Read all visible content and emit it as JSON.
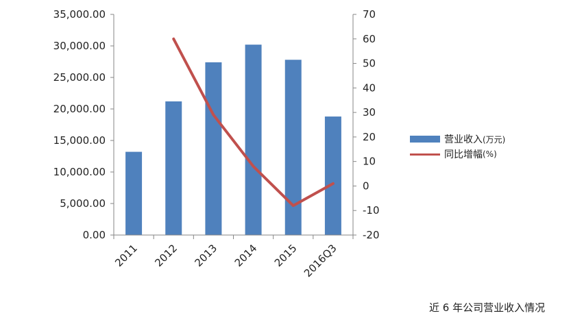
{
  "chart_data": {
    "type": "bar",
    "categories": [
      "2011",
      "2012",
      "2013",
      "2014",
      "2015",
      "2016Q3"
    ],
    "series": [
      {
        "name": "营业收入(万元)",
        "type": "bar",
        "axis": "left",
        "color": "#4f81bd",
        "values": [
          13200,
          21200,
          27400,
          30200,
          27800,
          18800
        ]
      },
      {
        "name": "同比增幅(%)",
        "type": "line",
        "axis": "right",
        "color": "#c0504d",
        "values": [
          null,
          60,
          29,
          8,
          -8,
          1
        ]
      }
    ],
    "y_left": {
      "lim": [
        0,
        35000
      ],
      "ticks": [
        "0.00",
        "5,000.00",
        "10,000.00",
        "15,000.00",
        "20,000.00",
        "25,000.00",
        "30,000.00",
        "35,000.00"
      ]
    },
    "y_right": {
      "lim": [
        -20,
        70
      ],
      "ticks": [
        "-20",
        "-10",
        "0",
        "10",
        "20",
        "30",
        "40",
        "50",
        "60",
        "70"
      ]
    },
    "legend_position": "right",
    "grid": false
  },
  "legend": {
    "bar_label": "营业收入",
    "bar_unit": "(万元)",
    "line_label": "同比增幅",
    "line_unit": "(%)"
  },
  "caption": "近 6 年公司营业收入情况"
}
